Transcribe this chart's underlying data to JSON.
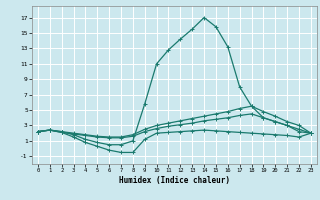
{
  "xlabel": "Humidex (Indice chaleur)",
  "xlim": [
    -0.5,
    23.5
  ],
  "ylim": [
    -2,
    18.5
  ],
  "xticks": [
    0,
    1,
    2,
    3,
    4,
    5,
    6,
    7,
    8,
    9,
    10,
    11,
    12,
    13,
    14,
    15,
    16,
    17,
    18,
    19,
    20,
    21,
    22,
    23
  ],
  "yticks": [
    -1,
    1,
    3,
    5,
    7,
    9,
    11,
    13,
    15,
    17
  ],
  "bg_color": "#cce8ee",
  "grid_color": "#ffffff",
  "line_color": "#1a7a6e",
  "line1_x": [
    0,
    1,
    2,
    3,
    4,
    5,
    6,
    7,
    8,
    9,
    10,
    11,
    12,
    13,
    14,
    15,
    16,
    17,
    18,
    19,
    20,
    21,
    22,
    23
  ],
  "line1_y": [
    2.2,
    2.4,
    2.2,
    1.8,
    1.2,
    0.8,
    0.5,
    0.5,
    1.0,
    5.8,
    11.0,
    12.8,
    14.2,
    15.5,
    17.0,
    15.8,
    13.2,
    8.0,
    5.5,
    4.0,
    3.5,
    3.0,
    2.2,
    2.0
  ],
  "line2_x": [
    0,
    1,
    2,
    3,
    4,
    5,
    6,
    7,
    8,
    9,
    10,
    11,
    12,
    13,
    14,
    15,
    16,
    17,
    18,
    19,
    20,
    21,
    22,
    23
  ],
  "line2_y": [
    2.2,
    2.4,
    2.2,
    2.0,
    1.8,
    1.6,
    1.5,
    1.5,
    1.8,
    2.5,
    3.0,
    3.3,
    3.6,
    3.9,
    4.2,
    4.5,
    4.8,
    5.2,
    5.5,
    4.8,
    4.2,
    3.5,
    3.0,
    2.0
  ],
  "line3_x": [
    0,
    1,
    2,
    3,
    4,
    5,
    6,
    7,
    8,
    9,
    10,
    11,
    12,
    13,
    14,
    15,
    16,
    17,
    18,
    19,
    20,
    21,
    22,
    23
  ],
  "line3_y": [
    2.2,
    2.4,
    2.1,
    1.9,
    1.7,
    1.5,
    1.4,
    1.4,
    1.6,
    2.2,
    2.6,
    2.9,
    3.1,
    3.3,
    3.6,
    3.8,
    4.0,
    4.3,
    4.5,
    4.0,
    3.5,
    3.0,
    2.5,
    2.0
  ],
  "line4_x": [
    0,
    1,
    2,
    3,
    4,
    5,
    6,
    7,
    8,
    9,
    10,
    11,
    12,
    13,
    14,
    15,
    16,
    17,
    18,
    19,
    20,
    21,
    22,
    23
  ],
  "line4_y": [
    2.2,
    2.4,
    2.1,
    1.5,
    0.8,
    0.3,
    -0.2,
    -0.5,
    -0.5,
    1.2,
    2.0,
    2.1,
    2.2,
    2.3,
    2.4,
    2.3,
    2.2,
    2.1,
    2.0,
    1.9,
    1.8,
    1.7,
    1.5,
    2.0
  ]
}
